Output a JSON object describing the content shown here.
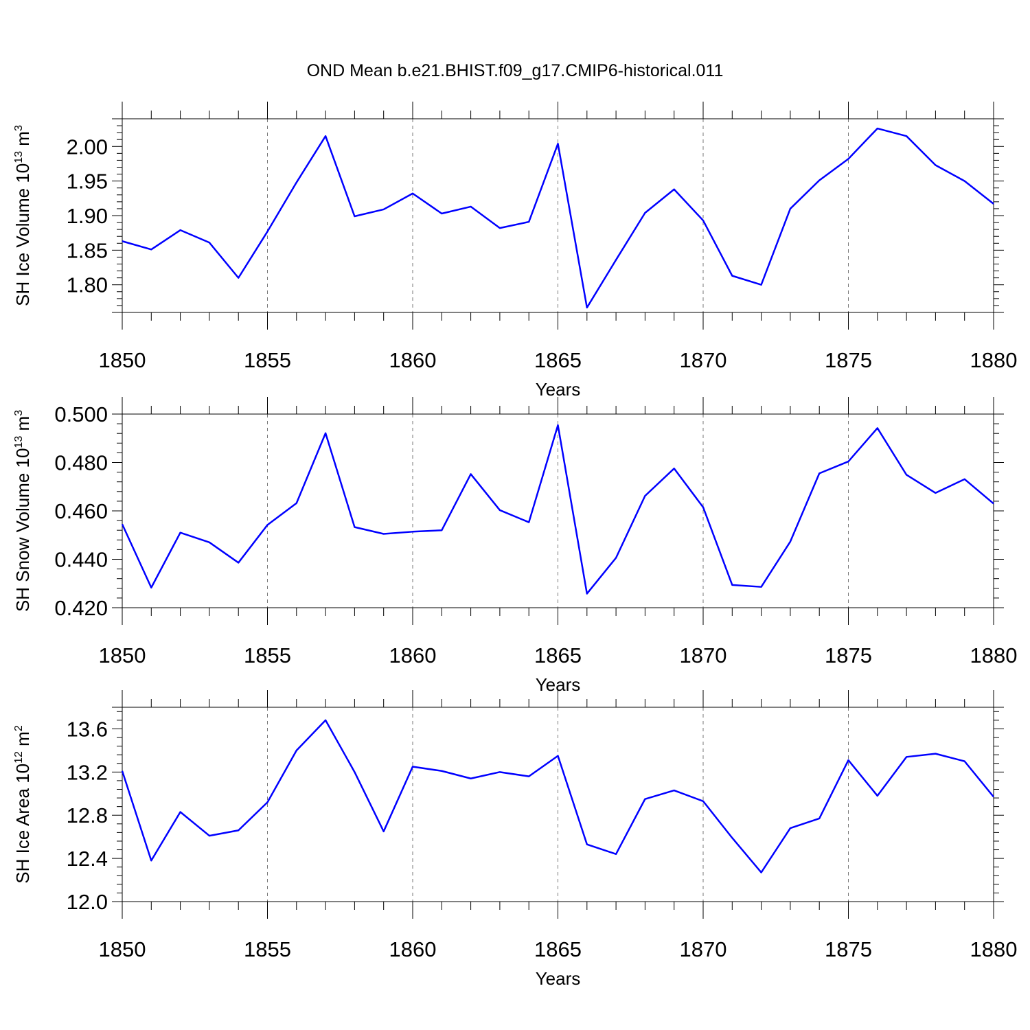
{
  "title": "OND Mean b.e21.BHIST.f09_g17.CMIP6-historical.011",
  "colors": {
    "line": "#0000ff",
    "frame": "#000000",
    "grid": "#777777"
  },
  "chart_data": [
    {
      "type": "line",
      "xlabel": "Years",
      "ylabel_text": "SH Ice Volume 10",
      "ylabel_exp": "13",
      "ylabel_unit": " m",
      "ylabel_unit_exp": "3",
      "xlim": [
        1850,
        1880
      ],
      "ylim": [
        1.76,
        2.04
      ],
      "xticks": [
        1850,
        1855,
        1860,
        1865,
        1870,
        1875,
        1880
      ],
      "yticks": [
        "1.80",
        "1.85",
        "1.90",
        "1.95",
        "2.00"
      ],
      "grid": "dashed vertical",
      "x": [
        1850,
        1851,
        1852,
        1853,
        1854,
        1855,
        1856,
        1857,
        1858,
        1859,
        1860,
        1861,
        1862,
        1863,
        1864,
        1865,
        1866,
        1867,
        1868,
        1869,
        1870,
        1871,
        1872,
        1873,
        1874,
        1875,
        1876,
        1877,
        1878,
        1879,
        1880
      ],
      "y": [
        1.863,
        1.851,
        1.879,
        1.861,
        1.81,
        1.877,
        1.948,
        2.015,
        1.899,
        1.909,
        1.932,
        1.903,
        1.913,
        1.882,
        1.891,
        2.004,
        1.767,
        1.836,
        1.904,
        1.938,
        1.893,
        1.813,
        1.8,
        1.91,
        1.951,
        1.982,
        2.026,
        2.015,
        1.973,
        1.95,
        1.917
      ]
    },
    {
      "type": "line",
      "xlabel": "Years",
      "ylabel_text": "SH Snow Volume 10",
      "ylabel_exp": "13",
      "ylabel_unit": " m",
      "ylabel_unit_exp": "3",
      "xlim": [
        1850,
        1880
      ],
      "ylim": [
        0.42,
        0.5
      ],
      "xticks": [
        1850,
        1855,
        1860,
        1865,
        1870,
        1875,
        1880
      ],
      "yticks": [
        "0.420",
        "0.440",
        "0.460",
        "0.480",
        "0.500"
      ],
      "grid": "dashed vertical",
      "x": [
        1850,
        1851,
        1852,
        1853,
        1854,
        1855,
        1856,
        1857,
        1858,
        1859,
        1860,
        1861,
        1862,
        1863,
        1864,
        1865,
        1866,
        1867,
        1868,
        1869,
        1870,
        1871,
        1872,
        1873,
        1874,
        1875,
        1876,
        1877,
        1878,
        1879,
        1880
      ],
      "y": [
        0.4545,
        0.4283,
        0.451,
        0.447,
        0.4386,
        0.4542,
        0.4632,
        0.4921,
        0.4533,
        0.4505,
        0.4514,
        0.452,
        0.4752,
        0.4603,
        0.4553,
        0.4954,
        0.4258,
        0.4406,
        0.4662,
        0.4775,
        0.4615,
        0.4294,
        0.4286,
        0.4473,
        0.4755,
        0.4804,
        0.4942,
        0.4749,
        0.4674,
        0.4731,
        0.463
      ]
    },
    {
      "type": "line",
      "xlabel": "Years",
      "ylabel_text": "SH Ice Area 10",
      "ylabel_exp": "12",
      "ylabel_unit": " m",
      "ylabel_unit_exp": "2",
      "xlim": [
        1850,
        1880
      ],
      "ylim": [
        12.0,
        13.8
      ],
      "xticks": [
        1850,
        1855,
        1860,
        1865,
        1870,
        1875,
        1880
      ],
      "yticks": [
        "12.0",
        "12.4",
        "12.8",
        "13.2",
        "13.6"
      ],
      "grid": "dashed vertical",
      "x": [
        1850,
        1851,
        1852,
        1853,
        1854,
        1855,
        1856,
        1857,
        1858,
        1859,
        1860,
        1861,
        1862,
        1863,
        1864,
        1865,
        1866,
        1867,
        1868,
        1869,
        1870,
        1871,
        1872,
        1873,
        1874,
        1875,
        1876,
        1877,
        1878,
        1879,
        1880
      ],
      "y": [
        13.21,
        12.38,
        12.83,
        12.61,
        12.66,
        12.92,
        13.4,
        13.68,
        13.2,
        12.65,
        13.25,
        13.21,
        13.14,
        13.2,
        13.16,
        13.35,
        12.53,
        12.44,
        12.95,
        13.03,
        12.93,
        12.59,
        12.27,
        12.68,
        12.77,
        13.31,
        12.98,
        13.34,
        13.37,
        13.3,
        12.97
      ]
    }
  ]
}
